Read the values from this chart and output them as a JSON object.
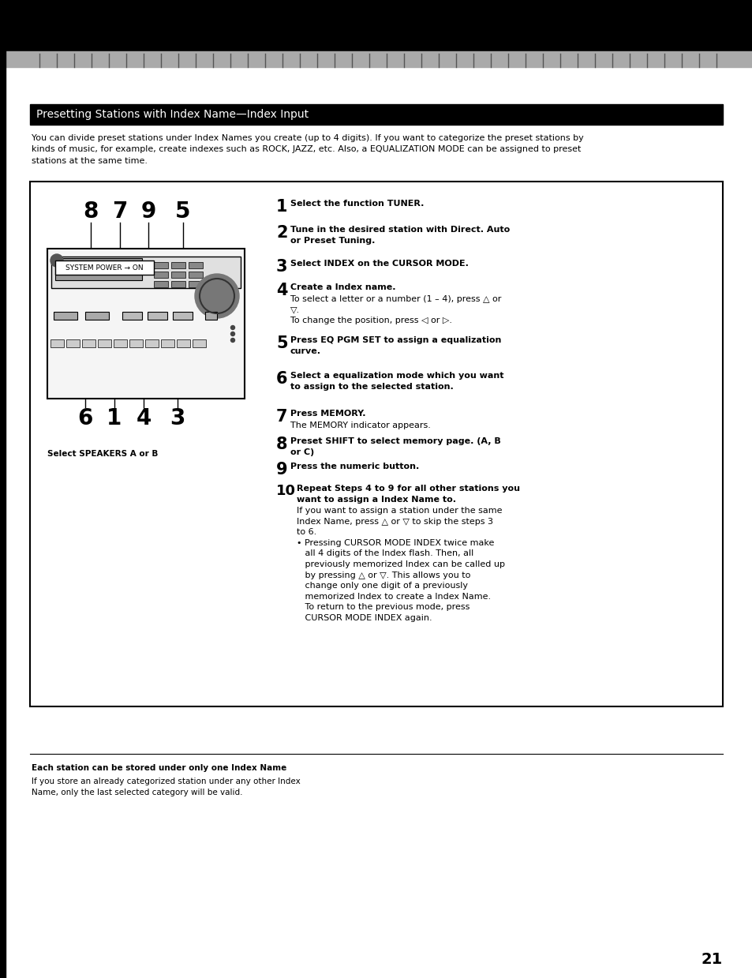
{
  "page_bg": "#ffffff",
  "header_bg": "#000000",
  "section_title_bg": "#000000",
  "section_title_text": "Presetting Stations with Index Name—Index Input",
  "section_title_color": "#ffffff",
  "intro_text": "You can divide preset stations under Index Names you create (up to 4 digits). If you want to categorize the preset stations by\nkinds of music, for example, create indexes such as ROCK, JAZZ, etc. Also, a EQUALIZATION MODE can be assigned to preset\nstations at the same time.",
  "steps": [
    {
      "num": "1",
      "bold": "Select the function TUNER.",
      "normal": ""
    },
    {
      "num": "2",
      "bold": "Tune in the desired station with Direct. Auto\nor Preset Tuning.",
      "normal": ""
    },
    {
      "num": "3",
      "bold": "Select INDEX on the CURSOR MODE.",
      "normal": ""
    },
    {
      "num": "4",
      "bold": "Create a Index name.",
      "normal": "To select a letter or a number (1 – 4), press △ or\n▽.\nTo change the position, press ◁ or ▷."
    },
    {
      "num": "5",
      "bold": "Press EQ PGM SET to assign a equalization\ncurve.",
      "normal": ""
    },
    {
      "num": "6",
      "bold": "Select a equalization mode which you want\nto assign to the selected station.",
      "normal": ""
    },
    {
      "num": "7",
      "bold": "Press MEMORY.",
      "normal": "The MEMORY indicator appears."
    },
    {
      "num": "8",
      "bold": "Preset SHIFT to select memory page. (A, B\nor C)",
      "normal": ""
    },
    {
      "num": "9",
      "bold": "Press the numeric button.",
      "normal": ""
    },
    {
      "num": "10",
      "bold": "Repeat Steps 4 to 9 for all other stations you\nwant to assign a Index Name to.",
      "normal": "If you want to assign a station under the same\nIndex Name, press △ or ▽ to skip the steps 3\nto 6.\n• Pressing CURSOR MODE INDEX twice make\n   all 4 digits of the Index flash. Then, all\n   previously memorized Index can be called up\n   by pressing △ or ▽. This allows you to\n   change only one digit of a previously\n   memorized Index to create a Index Name.\n   To return to the previous mode, press\n   CURSOR MODE INDEX again."
    }
  ],
  "footnote_bold": "Each station can be stored under only one Index Name",
  "footnote_normal": "If you store an already categorized station under any other Index\nName, only the last selected category will be valid.",
  "page_number": "21",
  "diagram_label": "Select SPEAKERS A or B",
  "diagram_numbers_top": [
    "8",
    "7",
    "9",
    "5"
  ],
  "diagram_numbers_bottom": [
    "6",
    "1",
    "4",
    "3"
  ],
  "system_power_label": "SYSTEM POWER → ON"
}
